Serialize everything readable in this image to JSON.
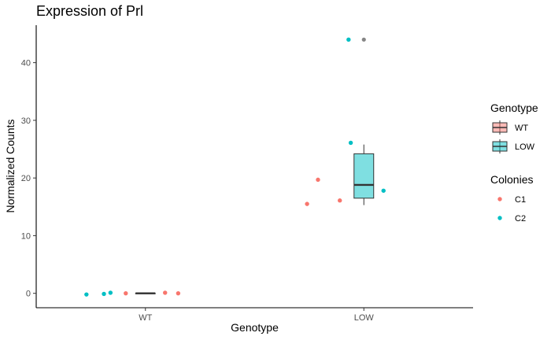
{
  "chart_data": {
    "type": "box",
    "title": "Expression of Prl",
    "xlabel": "Genotype",
    "ylabel": "Normalized Counts",
    "categories": [
      "WT",
      "LOW"
    ],
    "ylim": [
      -2.5,
      46.5
    ],
    "yticks": [
      0,
      10,
      20,
      30,
      40
    ],
    "grid": false,
    "legend_position": "right",
    "boxes": [
      {
        "category": "WT",
        "genotype": "WT",
        "color": "#F8766D",
        "q1": 0.0,
        "median": 0.0,
        "q3": 0.0,
        "whisker_low": 0.0,
        "whisker_high": 0.0,
        "outliers": []
      },
      {
        "category": "LOW",
        "genotype": "LOW",
        "color": "#00BFC4",
        "q1": 16.5,
        "median": 18.8,
        "q3": 24.2,
        "whisker_low": 15.3,
        "whisker_high": 25.8,
        "outliers": [
          44.0
        ]
      }
    ],
    "points": [
      {
        "category": "WT",
        "colony": "C2",
        "offset": -0.27,
        "y": -0.2
      },
      {
        "category": "WT",
        "colony": "C2",
        "offset": -0.19,
        "y": -0.1
      },
      {
        "category": "WT",
        "colony": "C2",
        "offset": -0.16,
        "y": 0.1
      },
      {
        "category": "WT",
        "colony": "C1",
        "offset": -0.09,
        "y": 0.0
      },
      {
        "category": "WT",
        "colony": "C1",
        "offset": 0.09,
        "y": 0.1
      },
      {
        "category": "WT",
        "colony": "C1",
        "offset": 0.15,
        "y": 0.0
      },
      {
        "category": "LOW",
        "colony": "C2",
        "offset": -0.07,
        "y": 44.0
      },
      {
        "category": "LOW",
        "colony": "C2",
        "offset": -0.06,
        "y": 26.1
      },
      {
        "category": "LOW",
        "colony": "C1",
        "offset": -0.21,
        "y": 19.7
      },
      {
        "category": "LOW",
        "colony": "C1",
        "offset": -0.11,
        "y": 16.1
      },
      {
        "category": "LOW",
        "colony": "C1",
        "offset": -0.26,
        "y": 15.5
      },
      {
        "category": "LOW",
        "colony": "C2",
        "offset": 0.09,
        "y": 17.8
      }
    ],
    "legends": [
      {
        "title": "Genotype",
        "kind": "box",
        "items": [
          {
            "label": "WT",
            "color": "#F8766D"
          },
          {
            "label": "LOW",
            "color": "#00BFC4"
          }
        ]
      },
      {
        "title": "Colonies",
        "kind": "point",
        "items": [
          {
            "label": "C1",
            "color": "#F8766D"
          },
          {
            "label": "C2",
            "color": "#00BFC4"
          }
        ]
      }
    ]
  }
}
